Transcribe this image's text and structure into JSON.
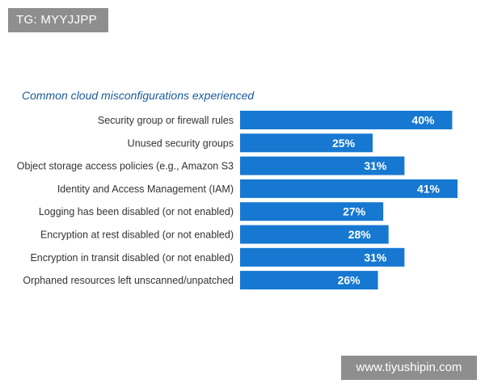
{
  "watermarks": {
    "top_left": "TG: MYYJJPP",
    "bottom_right": "www.tiyushipin.com"
  },
  "colors": {
    "bar": "#1778d1",
    "bar_label": "#ffffff",
    "category_label": "#333333",
    "title": "#1a5a9c",
    "watermark_bg": "#8e8e8e"
  },
  "chart_data": {
    "type": "bar",
    "orientation": "horizontal",
    "title": "Common cloud misconfigurations experienced",
    "xlabel": "",
    "ylabel": "",
    "grid": false,
    "legend": "none",
    "xlim": [
      0,
      41
    ],
    "categories": [
      "Security group or firewall rules",
      "Unused security groups",
      "Object storage access policies (e.g., Amazon S3",
      "Identity and Access Management (IAM)",
      "Logging has been disabled (or not enabled)",
      "Encryption at rest disabled (or not enabled)",
      "Encryption in transit disabled (or not enabled)",
      "Orphaned resources left unscanned/unpatched"
    ],
    "values": [
      40,
      25,
      31,
      41,
      27,
      28,
      31,
      26
    ],
    "value_labels": [
      "40%",
      "25%",
      "31%",
      "41%",
      "27%",
      "28%",
      "31%",
      "26%"
    ]
  }
}
